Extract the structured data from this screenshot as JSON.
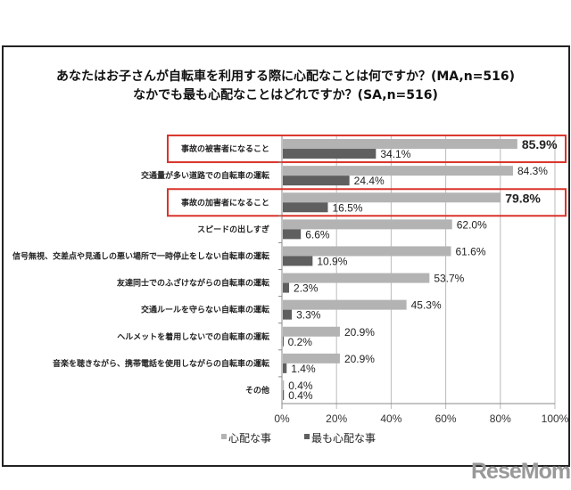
{
  "chart_data": {
    "type": "bar",
    "orientation": "horizontal",
    "title": [
      "あなたはお子さんが自転車を利用する際に心配なことは何ですか？(MA,n=516)",
      "なかでも最も心配なことはどれですか？(SA,n=516)"
    ],
    "categories": [
      "事故の被害者になること",
      "交通量が多い道路での自転車の運転",
      "事故の加害者になること",
      "スピードの出しすぎ",
      "信号無視、交差点や見通しの悪い場所で一時停止をしない自転車の運転",
      "友達同士でのふざけながらの自転車の運転",
      "交通ルールを守らない自転車の運転",
      "ヘルメットを着用しないでの自転車の運転",
      "音楽を聴きながら、携帯電話を使用しながらの自転車の運転",
      "その他"
    ],
    "series": [
      {
        "name": "心配な事",
        "color": "#b3b3b3",
        "values": [
          85.9,
          84.3,
          79.8,
          62.0,
          61.6,
          53.7,
          45.3,
          20.9,
          20.9,
          0.4
        ]
      },
      {
        "name": "最も心配な事",
        "color": "#5f5f5f",
        "values": [
          34.1,
          24.4,
          16.5,
          6.6,
          10.9,
          2.3,
          3.3,
          0.2,
          1.4,
          0.4
        ]
      }
    ],
    "highlighted": [
      0,
      2
    ],
    "highlight_color": "#d9342b",
    "xlim": [
      0,
      100
    ],
    "xticks": [
      "0%",
      "20%",
      "40%",
      "60%",
      "80%",
      "100%"
    ],
    "grid": true,
    "legend": "bottom-left"
  },
  "logo": "ReseMom"
}
